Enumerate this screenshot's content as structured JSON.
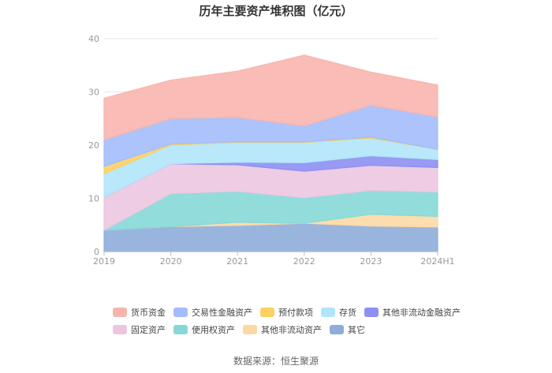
{
  "chart_data": {
    "type": "area",
    "stacked": true,
    "title": "历年主要资产堆积图（亿元）",
    "categories": [
      "2019",
      "2020",
      "2021",
      "2022",
      "2023",
      "2024H1"
    ],
    "y_ticks": [
      "0",
      "10",
      "20",
      "30",
      "40"
    ],
    "ylim": [
      0,
      40
    ],
    "grid": true,
    "legend_position": "bottom",
    "series": [
      {
        "name": "其它",
        "color": "#8fadd9",
        "values": [
          4.0,
          4.7,
          4.9,
          5.3,
          4.8,
          4.6
        ]
      },
      {
        "name": "其他非流动资产",
        "color": "#fbd9a5",
        "values": [
          0.0,
          0.0,
          0.6,
          0.0,
          2.2,
          2.0
        ]
      },
      {
        "name": "使用权资产",
        "color": "#86d8d8",
        "values": [
          0.0,
          6.2,
          5.8,
          4.8,
          4.5,
          4.6
        ]
      },
      {
        "name": "固定资产",
        "color": "#ecc6e0",
        "values": [
          6.2,
          5.6,
          5.0,
          5.0,
          4.7,
          4.6
        ]
      },
      {
        "name": "其他非流动金融资产",
        "color": "#8d8ff2",
        "values": [
          0.0,
          0.0,
          0.5,
          1.6,
          1.8,
          1.5
        ]
      },
      {
        "name": "存货",
        "color": "#b0e5fa",
        "values": [
          4.4,
          3.5,
          3.7,
          3.8,
          3.3,
          1.9
        ]
      },
      {
        "name": "预付款项",
        "color": "#fbd064",
        "values": [
          1.4,
          0.2,
          0.1,
          0.1,
          0.2,
          0.0
        ]
      },
      {
        "name": "交易性金融资产",
        "color": "#a3bcfb",
        "values": [
          5.0,
          4.8,
          4.6,
          3.0,
          6.0,
          6.1
        ]
      },
      {
        "name": "货币资金",
        "color": "#f8b5ae",
        "values": [
          7.8,
          7.2,
          8.7,
          13.3,
          6.2,
          6.0
        ]
      }
    ],
    "legend_order": [
      "货币资金",
      "交易性金融资产",
      "预付款项",
      "存货",
      "其他非流动金融资产",
      "固定资产",
      "使用权资产",
      "其他非流动资产",
      "其它"
    ]
  },
  "source": "数据来源：恒生聚源"
}
